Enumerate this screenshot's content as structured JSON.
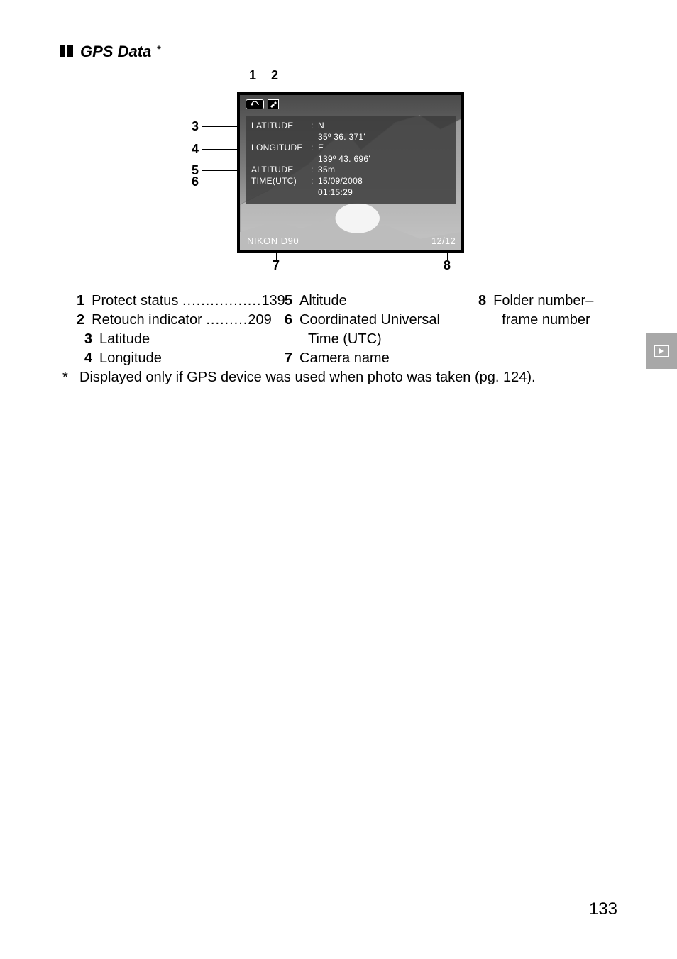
{
  "heading": {
    "title": "GPS Data",
    "asterisk": "*"
  },
  "screen": {
    "topbar": {
      "protect_label": "O",
      "retouch_label": "✎"
    },
    "rows": {
      "lat_label": "LATITUDE",
      "lat_val1": "N",
      "lat_val2": "35º 36. 371'",
      "lon_label": "LONGITUDE",
      "lon_val1": "E",
      "lon_val2": "139º 43. 696'",
      "alt_label": "ALTITUDE",
      "alt_val": "35m",
      "time_label": "TIME(UTC)",
      "time_val1": "15/09/2008",
      "time_val2": "01:15:29"
    },
    "camera_name": "NIKON D90",
    "folder_frame": "12/12"
  },
  "callouts": {
    "top": {
      "n1": "1",
      "n2": "2"
    },
    "left": {
      "n3": "3",
      "n4": "4",
      "n5": "5",
      "n6": "6"
    },
    "bottom": {
      "n7": "7",
      "n8": "8"
    }
  },
  "legend": {
    "col1": [
      {
        "num": "1",
        "text": "Protect status",
        "page": "139",
        "dots": "................."
      },
      {
        "num": "2",
        "text": "Retouch indicator",
        "page": "209",
        "dots": "........."
      },
      {
        "num": "3",
        "text": "Latitude"
      },
      {
        "num": "4",
        "text": "Longitude"
      }
    ],
    "col2": [
      {
        "num": "5",
        "text": "Altitude"
      },
      {
        "num": "6",
        "text": "Coordinated Universal"
      },
      {
        "num": "",
        "text": "Time (UTC)",
        "indent": true
      },
      {
        "num": "7",
        "text": "Camera name"
      }
    ],
    "col3": [
      {
        "num": "8",
        "text": "Folder number–"
      },
      {
        "num": "",
        "text": "frame number",
        "indent": true
      }
    ]
  },
  "footnote": {
    "star": "*",
    "text": "Displayed only if GPS device was used when photo was taken (pg. 124)."
  },
  "page_number": "133"
}
